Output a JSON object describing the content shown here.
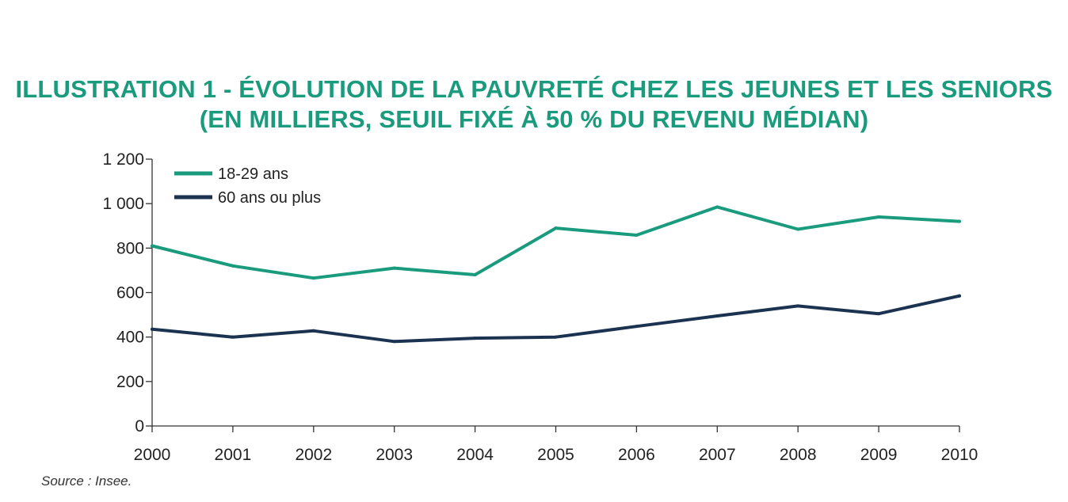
{
  "title": {
    "line1": "ILLUSTRATION 1 - ÉVOLUTION DE LA PAUVRETÉ CHEZ LES JEUNES ET LES SENIORS",
    "line2": "(EN MILLIERS, SEUIL FIXÉ À 50 % DU REVENU MÉDIAN)"
  },
  "source": "Source : Insee.",
  "colors": {
    "title": "#1a9b7d",
    "series_young": "#1a9b7d",
    "series_senior": "#1b3350",
    "axis": "#333333"
  },
  "chart_data": {
    "type": "line",
    "title": "ILLUSTRATION 1 - ÉVOLUTION DE LA PAUVRETÉ CHEZ LES JEUNES ET LES SENIORS (EN MILLIERS, SEUIL FIXÉ À 50 % DU REVENU MÉDIAN)",
    "xlabel": "",
    "ylabel": "",
    "x": [
      "2000",
      "2001",
      "2002",
      "2003",
      "2004",
      "2005",
      "2006",
      "2007",
      "2008",
      "2009",
      "2010"
    ],
    "ylim": [
      0,
      1200
    ],
    "yticks": [
      0,
      200,
      400,
      600,
      800,
      1000,
      1200
    ],
    "ytick_labels": [
      "0",
      "200",
      "400",
      "600",
      "800",
      "1 000",
      "1 200"
    ],
    "grid": false,
    "legend_position": "top-left",
    "series": [
      {
        "name": "18-29 ans",
        "color": "#1a9b7d",
        "values": [
          810,
          720,
          665,
          710,
          680,
          890,
          858,
          985,
          885,
          940,
          920
        ]
      },
      {
        "name": "60 ans ou plus",
        "color": "#1b3350",
        "values": [
          435,
          400,
          428,
          380,
          395,
          400,
          448,
          495,
          540,
          505,
          585
        ]
      }
    ]
  }
}
